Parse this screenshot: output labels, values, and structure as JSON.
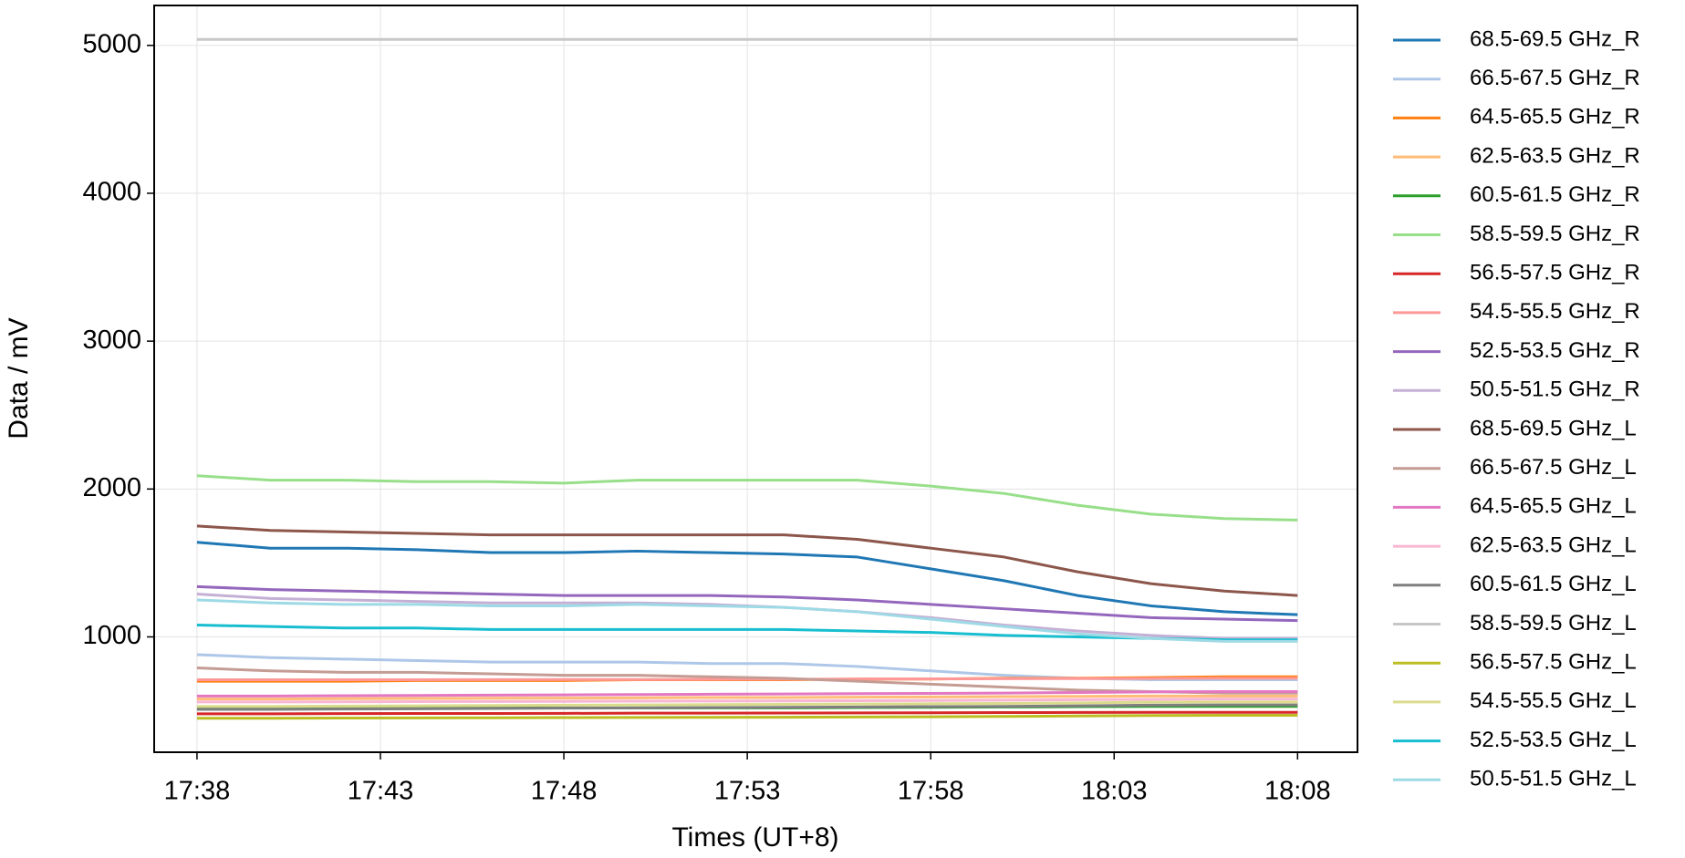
{
  "chart_data": {
    "type": "line",
    "x_label": "Times (UT+8)",
    "y_label": "Data / mV",
    "x": [
      "17:38",
      "17:40",
      "17:42",
      "17:44",
      "17:46",
      "17:48",
      "17:50",
      "17:52",
      "17:54",
      "17:56",
      "17:58",
      "18:00",
      "18:02",
      "18:04",
      "18:06",
      "18:08"
    ],
    "xlim": [
      "17:36:50",
      "18:09:38"
    ],
    "xticks": [
      "17:38",
      "17:43",
      "17:48",
      "17:53",
      "17:58",
      "18:03",
      "18:08"
    ],
    "ylim": [
      220,
      5270
    ],
    "yticks": [
      1000,
      2000,
      3000,
      4000,
      5000
    ],
    "grid": true,
    "legend": "outside-right",
    "series": [
      {
        "name": "68.5-69.5 GHz_R",
        "color": "#1f77b4",
        "values": [
          1640,
          1600,
          1600,
          1590,
          1570,
          1570,
          1580,
          1570,
          1560,
          1540,
          1460,
          1380,
          1280,
          1210,
          1170,
          1150
        ]
      },
      {
        "name": "66.5-67.5 GHz_R",
        "color": "#aec7e8",
        "values": [
          880,
          860,
          850,
          840,
          830,
          830,
          830,
          820,
          820,
          800,
          770,
          740,
          720,
          710,
          710,
          710
        ]
      },
      {
        "name": "64.5-65.5 GHz_R",
        "color": "#ff7f0e",
        "values": [
          700,
          700,
          700,
          705,
          705,
          705,
          710,
          710,
          710,
          715,
          715,
          720,
          720,
          725,
          730,
          730
        ]
      },
      {
        "name": "62.5-63.5 GHz_R",
        "color": "#ffbb78",
        "values": [
          580,
          580,
          582,
          584,
          585,
          586,
          588,
          590,
          590,
          592,
          594,
          596,
          598,
          600,
          600,
          600
        ]
      },
      {
        "name": "60.5-61.5 GHz_R",
        "color": "#2ca02c",
        "values": [
          520,
          520,
          520,
          520,
          520,
          520,
          520,
          520,
          520,
          522,
          524,
          526,
          528,
          530,
          530,
          530
        ]
      },
      {
        "name": "58.5-59.5 GHz_R",
        "color": "#98df8a",
        "values": [
          2090,
          2060,
          2060,
          2050,
          2050,
          2040,
          2060,
          2060,
          2060,
          2060,
          2020,
          1970,
          1890,
          1830,
          1800,
          1790
        ]
      },
      {
        "name": "56.5-57.5 GHz_R",
        "color": "#d62728",
        "values": [
          480,
          480,
          481,
          482,
          482,
          483,
          484,
          484,
          485,
          486,
          487,
          488,
          489,
          490,
          490,
          490
        ]
      },
      {
        "name": "54.5-55.5 GHz_R",
        "color": "#ff9896",
        "values": [
          710,
          710,
          710,
          710,
          711,
          712,
          712,
          713,
          714,
          715,
          716,
          717,
          718,
          719,
          720,
          720
        ]
      },
      {
        "name": "52.5-53.5 GHz_R",
        "color": "#9467bd",
        "values": [
          1340,
          1320,
          1310,
          1300,
          1290,
          1280,
          1280,
          1280,
          1270,
          1250,
          1220,
          1190,
          1160,
          1130,
          1120,
          1110
        ]
      },
      {
        "name": "50.5-51.5 GHz_R",
        "color": "#c5b0d5",
        "values": [
          1290,
          1260,
          1250,
          1240,
          1230,
          1230,
          1230,
          1220,
          1200,
          1170,
          1130,
          1080,
          1040,
          1010,
          990,
          990
        ]
      },
      {
        "name": "68.5-69.5 GHz_L",
        "color": "#8c564b",
        "values": [
          1750,
          1720,
          1710,
          1700,
          1690,
          1690,
          1690,
          1690,
          1690,
          1660,
          1600,
          1540,
          1440,
          1360,
          1310,
          1280
        ]
      },
      {
        "name": "66.5-67.5 GHz_L",
        "color": "#c49c94",
        "values": [
          790,
          770,
          760,
          760,
          750,
          740,
          740,
          730,
          720,
          700,
          680,
          660,
          640,
          630,
          620,
          620
        ]
      },
      {
        "name": "64.5-65.5 GHz_L",
        "color": "#e377c2",
        "values": [
          600,
          600,
          602,
          604,
          606,
          608,
          610,
          612,
          614,
          616,
          618,
          620,
          624,
          628,
          630,
          630
        ]
      },
      {
        "name": "62.5-63.5 GHz_L",
        "color": "#f7b6d2",
        "values": [
          560,
          560,
          561,
          562,
          563,
          564,
          565,
          566,
          567,
          568,
          570,
          572,
          575,
          578,
          580,
          580
        ]
      },
      {
        "name": "60.5-61.5 GHz_L",
        "color": "#7f7f7f",
        "values": [
          510,
          510,
          512,
          514,
          516,
          518,
          520,
          522,
          524,
          526,
          528,
          530,
          534,
          538,
          540,
          540
        ]
      },
      {
        "name": "58.5-59.5 GHz_L",
        "color": "#c7c7c7",
        "values": [
          5040,
          5040,
          5040,
          5040,
          5040,
          5040,
          5040,
          5040,
          5040,
          5040,
          5040,
          5040,
          5040,
          5040,
          5040,
          5040
        ]
      },
      {
        "name": "56.5-57.5 GHz_L",
        "color": "#bcbd22",
        "values": [
          450,
          450,
          451,
          452,
          453,
          454,
          455,
          456,
          457,
          458,
          460,
          462,
          465,
          468,
          470,
          470
        ]
      },
      {
        "name": "54.5-55.5 GHz_L",
        "color": "#dbdb8d",
        "values": [
          530,
          530,
          532,
          534,
          536,
          538,
          540,
          542,
          544,
          546,
          548,
          550,
          554,
          558,
          560,
          560
        ]
      },
      {
        "name": "52.5-53.5 GHz_L",
        "color": "#17becf",
        "values": [
          1080,
          1070,
          1060,
          1060,
          1050,
          1050,
          1050,
          1050,
          1050,
          1040,
          1030,
          1010,
          1000,
          990,
          980,
          980
        ]
      },
      {
        "name": "50.5-51.5 GHz_L",
        "color": "#9edae5",
        "values": [
          1250,
          1230,
          1220,
          1220,
          1210,
          1210,
          1220,
          1210,
          1200,
          1170,
          1120,
          1070,
          1020,
          990,
          970,
          970
        ]
      }
    ]
  }
}
